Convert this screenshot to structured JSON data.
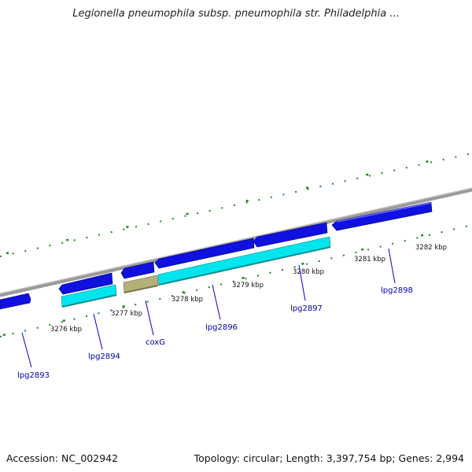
{
  "title": "Legionella pneumophila subsp. pneumophila str. Philadelphia ...",
  "footer": {
    "accession": "Accession: NC_002942",
    "summary": "Topology: circular; Length: 3,397,754 bp; Genes: 2,994"
  },
  "colors": {
    "forward_gene": "#1010e0",
    "reverse_gene": "#00e5ee",
    "rna_gene": "#b5b07a",
    "backbone": "#8a8a8a",
    "tick": "#1a8a1a",
    "label": "#0000aa"
  },
  "ticks": [
    "3276 kbp",
    "3277 kbp",
    "3278 kbp",
    "3279 kbp",
    "3280 kbp",
    "3281 kbp",
    "3282 kbp"
  ],
  "genes": [
    "lpg2893",
    "lpg2894",
    "coxG",
    "lpg2896",
    "lpg2897",
    "lpg2898"
  ]
}
